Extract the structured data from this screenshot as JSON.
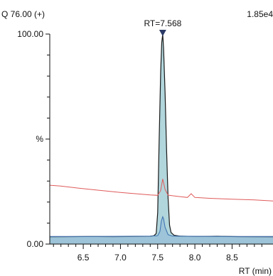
{
  "header": {
    "left_label": "Q 76.00 (+)",
    "right_label": "1.85e4"
  },
  "chart_data": {
    "type": "line",
    "peak_annotation": "RT=7.568",
    "peak_rt": 7.568,
    "xlabel": "RT (min)",
    "ylabel": "%",
    "xlim": [
      6.05,
      9.05
    ],
    "ylim": [
      0,
      100
    ],
    "x_ticks": [
      6.5,
      7.0,
      7.5,
      8.0,
      8.5
    ],
    "x_tick_labels": [
      "6.5",
      "7.0",
      "7.5",
      "8.0",
      "8.5"
    ],
    "y_tick_labels": [
      {
        "value": 0,
        "label": "0.00"
      },
      {
        "value": 50,
        "label": "%"
      },
      {
        "value": 100,
        "label": "100.00"
      }
    ],
    "grid": false,
    "colors": {
      "main": "#1a1a1a",
      "fill": "#a9d1d8",
      "red_trace": "#e05a5a",
      "blue_trace": "#3a6fb0",
      "marker": "#2b3a66"
    },
    "series": [
      {
        "color": "#1a1a1a",
        "fill": true,
        "x": [
          6.05,
          6.3,
          6.6,
          6.9,
          7.2,
          7.4,
          7.45,
          7.48,
          7.5,
          7.52,
          7.54,
          7.555,
          7.568,
          7.58,
          7.6,
          7.62,
          7.64,
          7.66,
          7.68,
          7.72,
          7.8,
          8.0,
          8.3,
          8.6,
          9.05
        ],
        "y": [
          3.4,
          3.5,
          3.6,
          3.5,
          3.6,
          3.7,
          4.0,
          5.0,
          15.0,
          50.0,
          82.0,
          96.0,
          100.0,
          93.0,
          72.0,
          45.0,
          22.0,
          9.0,
          5.5,
          4.2,
          3.8,
          3.6,
          3.7,
          3.5,
          3.4
        ]
      },
      {
        "color": "#e05a5a",
        "fill": false,
        "x": [
          6.05,
          6.2,
          6.4,
          6.6,
          6.8,
          7.0,
          7.2,
          7.4,
          7.5,
          7.54,
          7.568,
          7.6,
          7.64,
          7.7,
          7.8,
          7.9,
          7.95,
          8.0,
          8.2,
          8.5,
          8.8,
          9.05
        ],
        "y": [
          28.0,
          27.6,
          26.8,
          26.0,
          25.3,
          24.6,
          24.0,
          23.4,
          23.2,
          25.5,
          31.0,
          26.0,
          23.3,
          23.0,
          22.6,
          22.2,
          24.0,
          22.2,
          21.8,
          21.4,
          21.0,
          20.5
        ]
      },
      {
        "color": "#3a6fb0",
        "fill": true,
        "x": [
          6.05,
          6.5,
          7.0,
          7.4,
          7.5,
          7.53,
          7.55,
          7.568,
          7.58,
          7.6,
          7.64,
          7.7,
          8.0,
          8.5,
          9.05
        ],
        "y": [
          3.6,
          3.6,
          3.7,
          3.8,
          4.0,
          6.0,
          11.0,
          13.0,
          12.0,
          8.0,
          4.5,
          3.8,
          3.7,
          3.6,
          3.6
        ]
      }
    ]
  }
}
